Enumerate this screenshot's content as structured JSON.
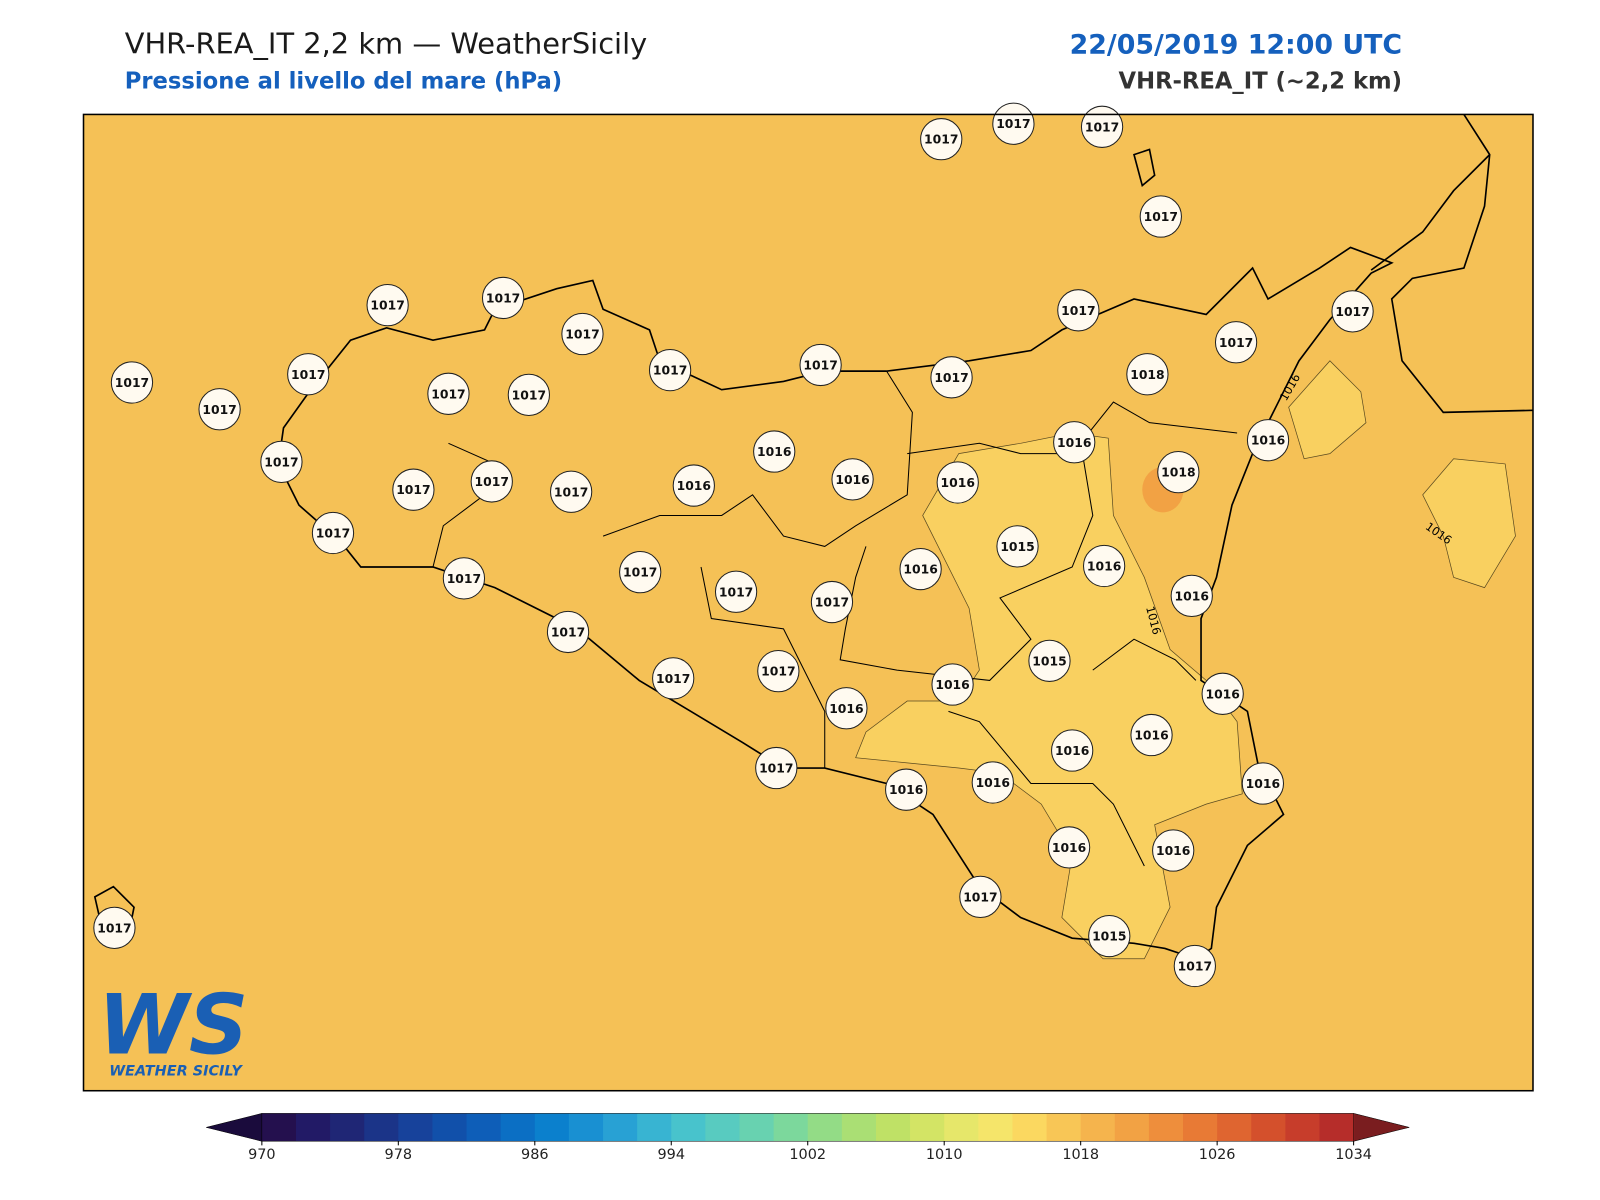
{
  "header": {
    "title": "VHR-REA_IT 2,2 km — WeatherSicily",
    "subtitle": "Pressione al livello del mare (hPa)",
    "datetime": "22/05/2019 12:00 UTC",
    "model": "VHR-REA_IT (~2,2 km)"
  },
  "map": {
    "background": "#f5c156",
    "region_color": "#f9d060",
    "high_color": "#f2a244"
  },
  "stations": [
    1017,
    1017,
    1017,
    1017,
    1017,
    1017,
    1017,
    1017,
    1017,
    1017,
    1017,
    1017,
    1017,
    1018,
    1017,
    1017,
    1017,
    1017,
    1017,
    1017,
    1017,
    1017,
    1017,
    1016,
    1016,
    1016,
    1016,
    1016,
    1016,
    1018,
    1017,
    1017,
    1017,
    1017,
    1017,
    1016,
    1015,
    1016,
    1016,
    1017,
    1017,
    1017,
    1016,
    1016,
    1015,
    1016,
    1016,
    1016,
    1017,
    1016,
    1016,
    1016,
    1016,
    1016,
    1017,
    1015,
    1017,
    1017
  ],
  "contour_labels": [
    "1016",
    "1016",
    "1016"
  ],
  "colorbar": {
    "lim": [
      970,
      1034
    ],
    "ticks": [
      970,
      978,
      986,
      994,
      1002,
      1010,
      1018,
      1026,
      1034
    ],
    "colors": [
      "#24104e",
      "#221a66",
      "#1f2675",
      "#1b3488",
      "#17429b",
      "#1150aa",
      "#0e5eb8",
      "#0b6fc4",
      "#0b80cd",
      "#1990d2",
      "#28a1d4",
      "#38b4d2",
      "#48c3cc",
      "#58cbc0",
      "#68d2b0",
      "#7cd89c",
      "#93dc86",
      "#aadf74",
      "#bfe166",
      "#d3e465",
      "#e6e76a",
      "#f5e56a",
      "#fbd860",
      "#f8c656",
      "#f5b44d",
      "#f2a244",
      "#ee8e3c",
      "#e87a35",
      "#df6530",
      "#d4502c",
      "#c73d2b",
      "#b62d2a"
    ],
    "under": "#1a0b3c",
    "over": "#7a1d1f"
  },
  "logo": {
    "letters": "WS",
    "text": "WEATHER SICILY"
  }
}
